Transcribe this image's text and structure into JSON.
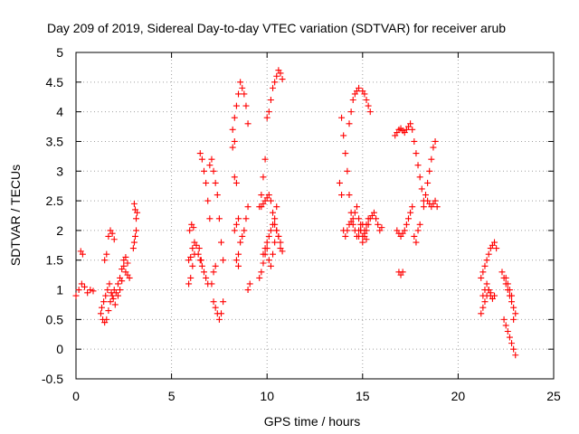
{
  "chart_data": {
    "type": "scatter",
    "title": "Day 209 of 2019, Sidereal Day-to-day VTEC variation (SDTVAR) for receiver arub",
    "xlabel": "GPS time / hours",
    "ylabel": "SDTVAR / TECUs",
    "xlim": [
      0,
      25
    ],
    "ylim": [
      -0.5,
      5
    ],
    "x_ticks": [
      "0",
      "5",
      "10",
      "15",
      "20",
      "25"
    ],
    "y_ticks": [
      "-0.5",
      "0",
      "0.5",
      "1",
      "1.5",
      "2",
      "2.5",
      "3",
      "3.5",
      "4",
      "4.5",
      "5"
    ],
    "grid": true,
    "marker": "+",
    "color": "#ff0000",
    "series": [
      {
        "x": [
          0.0,
          0.15,
          0.3,
          0.45,
          0.6,
          0.75,
          0.9,
          0.25,
          0.35,
          1.3,
          1.4,
          1.5,
          1.6,
          1.7,
          1.8,
          1.9,
          2.0,
          1.5,
          1.6,
          1.7,
          1.8,
          1.9,
          2.0,
          1.35,
          1.45,
          1.55,
          1.65,
          1.75,
          1.85,
          1.95,
          2.05,
          2.1,
          2.2,
          2.3,
          2.4,
          2.5,
          2.6,
          2.7,
          2.8,
          2.2,
          2.3,
          2.4,
          2.5,
          2.6,
          2.7,
          3.05,
          3.1,
          3.15,
          3.2,
          3.0,
          3.05,
          3.1,
          3.15,
          5.9,
          6.0,
          6.1,
          6.2,
          5.95,
          6.05,
          6.15,
          5.9,
          6.0,
          6.1,
          6.5,
          6.6,
          6.7,
          6.8,
          6.9,
          7.0,
          6.45,
          6.55,
          6.7,
          6.8,
          6.9,
          6.2,
          6.3,
          6.4,
          6.5,
          6.6,
          7.0,
          7.1,
          7.2,
          7.3,
          7.4,
          7.5,
          7.6,
          7.7,
          7.2,
          7.3,
          7.4,
          7.5,
          7.6,
          7.7,
          7.1,
          7.2,
          7.3,
          8.2,
          8.3,
          8.4,
          8.5,
          8.3,
          8.4,
          8.5,
          8.6,
          8.7,
          8.8,
          8.9,
          9.0,
          8.5,
          8.6,
          8.7,
          8.8,
          8.9,
          9.0,
          8.3,
          8.4,
          8.2,
          8.3,
          9.0,
          9.1,
          8.4,
          8.5,
          9.6,
          9.7,
          9.8,
          9.9,
          10.0,
          10.1,
          10.2,
          10.3,
          10.4,
          10.5,
          10.6,
          10.7,
          10.8,
          9.7,
          9.8,
          9.9,
          10.0,
          10.1,
          10.2,
          10.3,
          10.4,
          10.5,
          10.6,
          10.7,
          9.6,
          9.7,
          9.8,
          9.9,
          10.0,
          10.1,
          10.2,
          10.3,
          10.4,
          10.5,
          10.6,
          10.7,
          10.8,
          9.8,
          9.9,
          10.0,
          10.1,
          10.2,
          10.3,
          10.4,
          10.5,
          13.8,
          13.9,
          14.0,
          14.1,
          14.2,
          14.3,
          14.4,
          14.5,
          14.6,
          14.7,
          14.8,
          14.9,
          15.0,
          15.1,
          15.2,
          15.3,
          14.3,
          14.4,
          14.5,
          14.6,
          14.7,
          14.8,
          15.0,
          15.1,
          15.2,
          15.3,
          15.4,
          13.9,
          14.0,
          14.1,
          14.2,
          14.3,
          14.4,
          14.5,
          14.6,
          14.7,
          14.8,
          14.9,
          15.0,
          15.1,
          15.2,
          15.3,
          15.4,
          15.5,
          15.6,
          15.7,
          15.8,
          15.9,
          16.0,
          14.8,
          14.9,
          15.0,
          15.1,
          15.2,
          16.7,
          16.8,
          16.9,
          17.0,
          17.1,
          17.2,
          17.3,
          17.4,
          17.5,
          17.6,
          17.7,
          17.8,
          17.9,
          18.0,
          18.1,
          18.2,
          16.8,
          16.9,
          17.0,
          17.1,
          17.2,
          17.3,
          17.4,
          17.5,
          17.6,
          17.7,
          17.8,
          17.9,
          18.0,
          16.9,
          17.0,
          17.1,
          18.2,
          18.3,
          18.4,
          18.5,
          18.6,
          18.7,
          18.8,
          18.4,
          18.5,
          18.6,
          18.7,
          18.8,
          18.9,
          21.2,
          21.3,
          21.4,
          21.5,
          21.6,
          21.7,
          21.8,
          21.9,
          22.0,
          21.3,
          21.4,
          21.5,
          21.6,
          21.7,
          21.8,
          21.9,
          21.2,
          21.3,
          21.4,
          21.5,
          21.6,
          21.7,
          22.3,
          22.4,
          22.5,
          22.6,
          22.7,
          22.8,
          22.9,
          23.0,
          22.4,
          22.5,
          22.6,
          22.7,
          22.8,
          22.9,
          22.5,
          22.6,
          22.7,
          22.8,
          22.9,
          23.0
        ],
        "y": [
          0.9,
          1.0,
          1.1,
          1.05,
          0.95,
          1.0,
          0.98,
          1.65,
          1.6,
          0.6,
          0.5,
          0.45,
          0.5,
          0.65,
          0.8,
          0.9,
          1.0,
          1.5,
          1.6,
          1.9,
          2.0,
          1.95,
          1.85,
          0.7,
          0.8,
          0.9,
          1.0,
          1.1,
          0.95,
          0.85,
          0.75,
          0.95,
          1.1,
          1.2,
          1.35,
          1.4,
          1.3,
          1.25,
          1.2,
          0.9,
          1.0,
          1.15,
          1.5,
          1.55,
          1.45,
          2.45,
          2.35,
          2.2,
          2.3,
          1.7,
          1.8,
          1.9,
          2.0,
          1.1,
          1.2,
          1.4,
          1.6,
          2.0,
          2.1,
          2.05,
          1.5,
          1.55,
          1.7,
          3.3,
          3.2,
          3.0,
          2.8,
          2.5,
          2.2,
          1.7,
          1.5,
          1.3,
          1.2,
          1.1,
          1.8,
          1.75,
          1.6,
          1.5,
          1.4,
          3.1,
          3.2,
          3.0,
          2.8,
          2.6,
          2.2,
          1.8,
          1.5,
          0.8,
          0.7,
          0.6,
          0.5,
          0.6,
          0.8,
          1.1,
          1.3,
          1.4,
          3.7,
          3.9,
          4.1,
          4.3,
          2.0,
          2.1,
          2.2,
          4.5,
          4.4,
          4.3,
          4.1,
          3.8,
          1.6,
          1.8,
          1.9,
          2.0,
          2.2,
          2.4,
          2.9,
          2.8,
          3.4,
          3.5,
          1.0,
          1.1,
          1.5,
          1.4,
          1.2,
          1.3,
          1.45,
          1.6,
          1.7,
          1.5,
          1.4,
          1.6,
          1.8,
          2.0,
          1.9,
          1.7,
          1.65,
          2.4,
          2.45,
          2.5,
          2.55,
          2.6,
          2.5,
          2.3,
          2.1,
          2.0,
          1.9,
          1.8,
          2.4,
          2.6,
          2.9,
          3.2,
          3.9,
          4.0,
          4.2,
          4.4,
          4.5,
          4.6,
          4.7,
          4.65,
          4.55,
          1.6,
          1.7,
          1.8,
          1.9,
          2.0,
          2.1,
          2.2,
          2.4,
          2.8,
          2.6,
          2.0,
          1.9,
          2.0,
          2.1,
          2.15,
          2.2,
          2.3,
          2.4,
          2.2,
          2.0,
          1.9,
          2.0,
          2.1,
          2.2,
          3.8,
          4.0,
          4.2,
          4.3,
          4.35,
          4.4,
          4.35,
          4.3,
          4.2,
          4.1,
          4.0,
          3.9,
          3.6,
          3.3,
          3.0,
          2.6,
          2.3,
          2.1,
          2.0,
          1.9,
          2.0,
          2.1,
          1.8,
          1.9,
          2.0,
          2.1,
          2.2,
          2.25,
          2.3,
          2.2,
          2.1,
          2.0,
          2.05,
          1.9,
          2.0,
          2.1,
          1.95,
          1.85,
          3.6,
          3.65,
          3.7,
          3.72,
          3.68,
          3.65,
          3.7,
          3.75,
          3.8,
          3.7,
          3.5,
          3.3,
          3.1,
          2.9,
          2.7,
          2.5,
          2.0,
          1.95,
          1.9,
          1.95,
          2.0,
          2.1,
          2.2,
          2.3,
          2.4,
          1.9,
          1.8,
          2.0,
          2.1,
          1.3,
          1.25,
          1.3,
          2.4,
          2.6,
          2.8,
          3.0,
          3.2,
          3.4,
          3.5,
          2.5,
          2.45,
          2.4,
          2.45,
          2.5,
          2.4,
          1.2,
          1.3,
          1.4,
          1.5,
          1.6,
          1.7,
          1.75,
          1.8,
          1.7,
          0.9,
          1.0,
          1.1,
          1.0,
          0.9,
          0.85,
          0.9,
          0.6,
          0.7,
          0.8,
          0.9,
          1.0,
          0.95,
          1.3,
          1.2,
          1.1,
          1.0,
          0.9,
          0.8,
          0.7,
          0.6,
          0.5,
          0.4,
          0.3,
          0.2,
          0.1,
          0.0,
          1.2,
          1.1,
          1.0,
          0.9,
          0.5,
          -0.1
        ]
      }
    ]
  }
}
